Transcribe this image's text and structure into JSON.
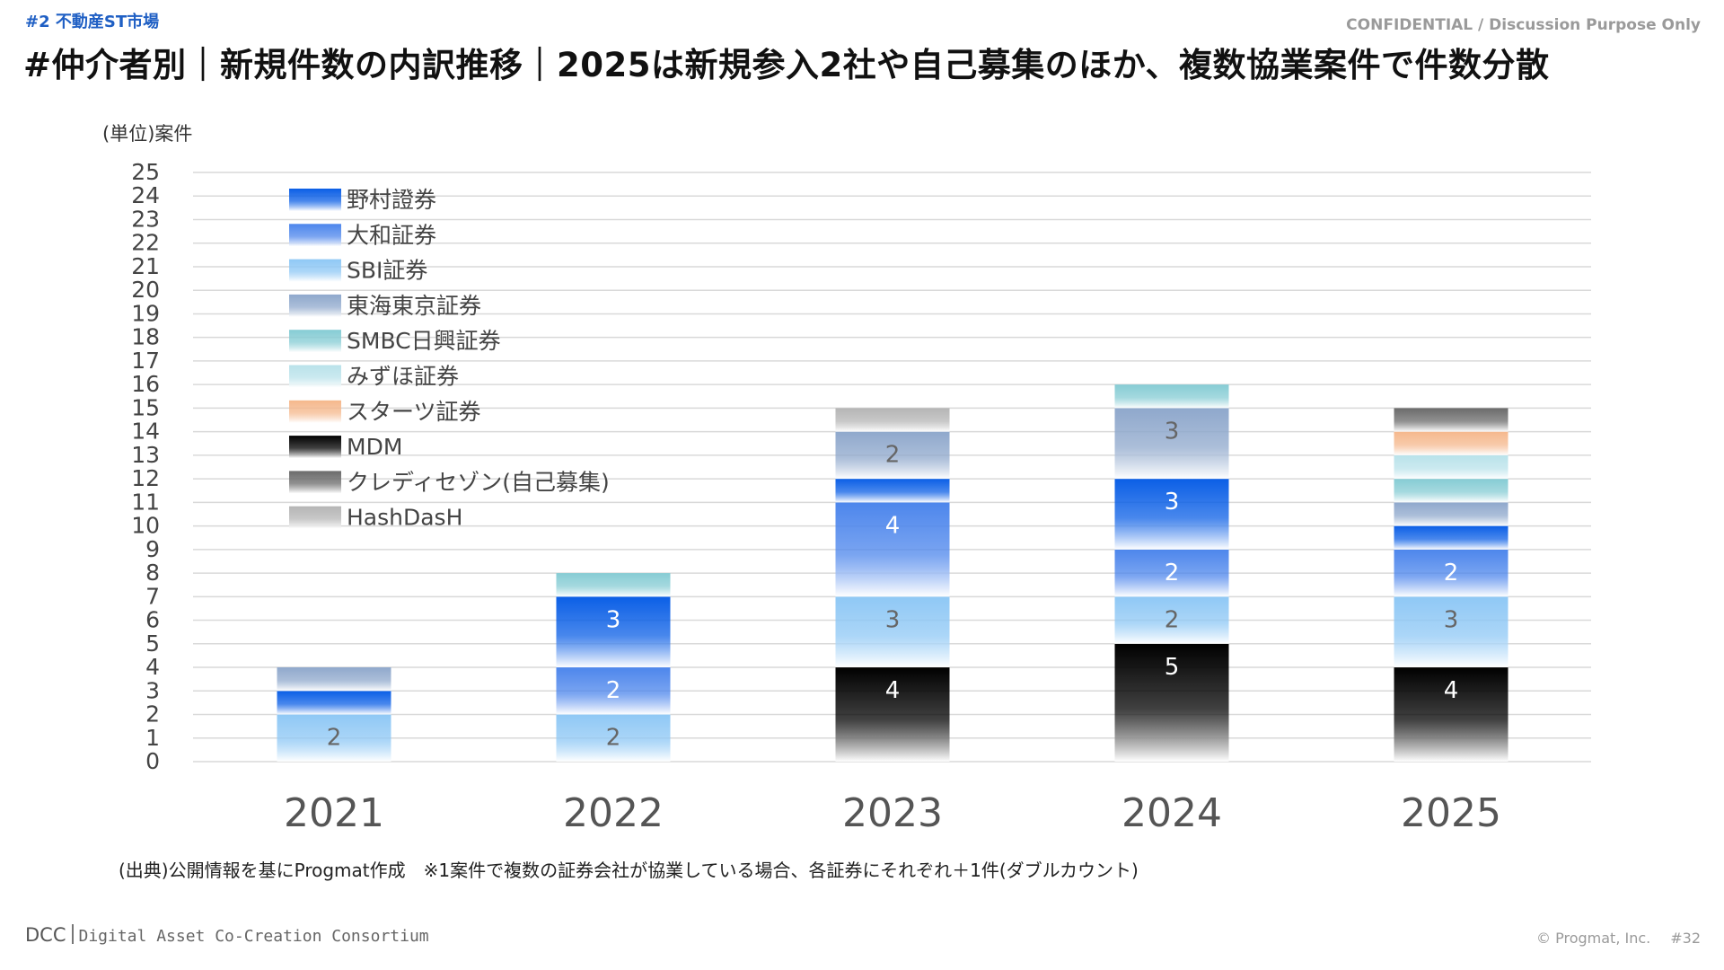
{
  "header": {
    "section_tag": "#2  不動産ST市場",
    "confidential": "CONFIDENTIAL / Discussion Purpose Only",
    "title": "#仲介者別｜新規件数の内訳推移｜2025は新規参入2社や自己募集のほか、複数協業案件で件数分散"
  },
  "chart_data": {
    "type": "bar",
    "stacked": true,
    "unit_label": "(単位)案件",
    "categories": [
      "2021",
      "2022",
      "2023",
      "2024",
      "2025"
    ],
    "ylim": [
      0,
      25
    ],
    "yticks": [
      0,
      1,
      2,
      3,
      4,
      5,
      6,
      7,
      8,
      9,
      10,
      11,
      12,
      13,
      14,
      15,
      16,
      17,
      18,
      19,
      20,
      21,
      22,
      23,
      24,
      25
    ],
    "grid": true,
    "legend_position": "top-left",
    "series": [
      {
        "name": "MDM",
        "color": "#000000",
        "values": [
          0,
          0,
          4,
          5,
          4
        ]
      },
      {
        "name": "SBI証券",
        "color": "#8fc8f5",
        "values": [
          2,
          2,
          3,
          2,
          3
        ]
      },
      {
        "name": "大和証券",
        "color": "#4d86ec",
        "values": [
          0,
          2,
          4,
          2,
          2
        ]
      },
      {
        "name": "野村證券",
        "color": "#0b5fe6",
        "values": [
          1,
          3,
          1,
          3,
          1
        ]
      },
      {
        "name": "東海東京証券",
        "color": "#8fa8cc",
        "values": [
          1,
          0,
          2,
          3,
          1
        ]
      },
      {
        "name": "SMBC日興証券",
        "color": "#86ccd4",
        "values": [
          0,
          1,
          0,
          1,
          1
        ]
      },
      {
        "name": "みずほ証券",
        "color": "#b9e2ea",
        "values": [
          0,
          0,
          0,
          0,
          1
        ]
      },
      {
        "name": "スターツ証券",
        "color": "#f5b88d",
        "values": [
          0,
          0,
          0,
          0,
          1
        ]
      },
      {
        "name": "クレディセゾン(自己募集)",
        "color": "#6b6b6b",
        "values": [
          0,
          0,
          0,
          0,
          1
        ]
      },
      {
        "name": "HashDasH",
        "color": "#b5b5b5",
        "values": [
          0,
          0,
          1,
          0,
          0
        ]
      }
    ],
    "legend_order": [
      "野村證券",
      "大和証券",
      "SBI証券",
      "東海東京証券",
      "SMBC日興証券",
      "みずほ証券",
      "スターツ証券",
      "MDM",
      "クレディセゾン(自己募集)",
      "HashDasH"
    ],
    "data_labels_min_value": 2
  },
  "footer": {
    "source_note": "(出典)公開情報を基にProgmat作成　※1案件で複数の証券会社が協業している場合、各証券にそれぞれ＋1件(ダブルカウント)",
    "logo_dcc": "DCC",
    "logo_text": "Digital Asset Co-Creation Consortium",
    "copyright": "© Progmat, Inc.",
    "page_number": "#32"
  }
}
